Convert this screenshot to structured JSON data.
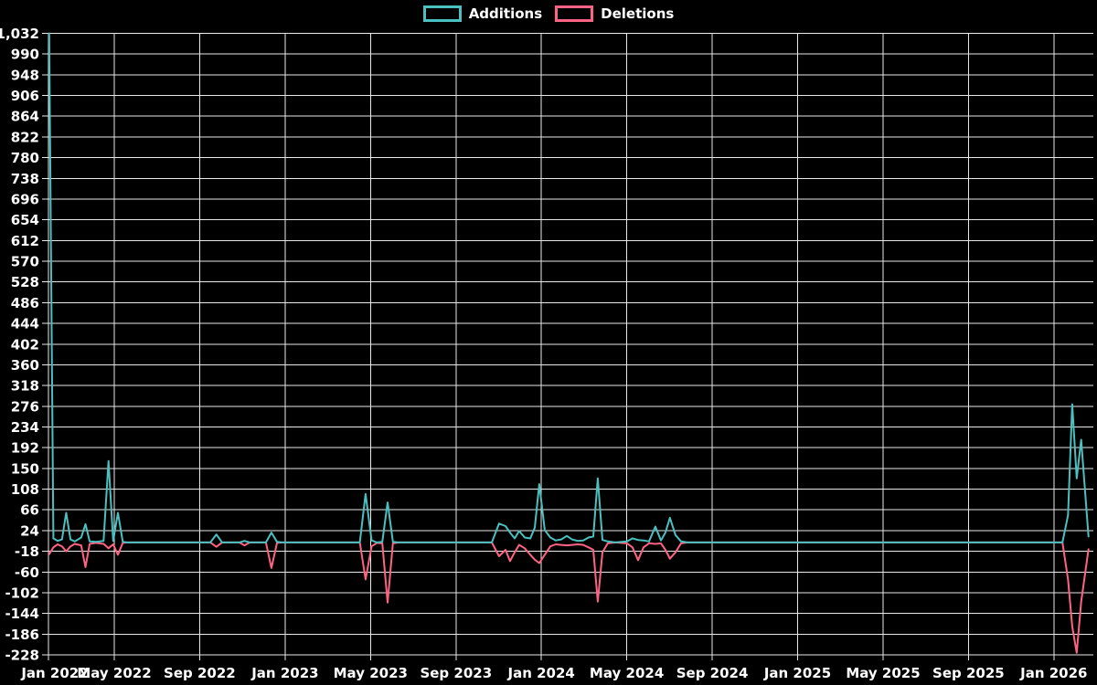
{
  "chart_data": {
    "type": "line",
    "title": "",
    "legend": [
      {
        "label": "Additions",
        "color": "#4BC0C0"
      },
      {
        "label": "Deletions",
        "color": "#FF6384"
      }
    ],
    "background": "#000000",
    "gridline_color": "#e8e8e8",
    "text_color": "#ffffff",
    "grid": true,
    "legend_position": "top-center",
    "ylim": [
      -228,
      1032
    ],
    "y_tick_step": 42,
    "y_tick_labels": [
      "1,032",
      "990",
      "948",
      "906",
      "864",
      "822",
      "780",
      "738",
      "696",
      "654",
      "612",
      "570",
      "528",
      "486",
      "444",
      "402",
      "360",
      "318",
      "276",
      "234",
      "192",
      "150",
      "108",
      "66",
      "24",
      "-18",
      "-60",
      "-102",
      "-144",
      "-186",
      "-228"
    ],
    "y_tick_values": [
      1032,
      990,
      948,
      906,
      864,
      822,
      780,
      738,
      696,
      654,
      612,
      570,
      528,
      486,
      444,
      402,
      360,
      318,
      276,
      234,
      192,
      150,
      108,
      66,
      24,
      -18,
      -60,
      -102,
      -144,
      -186,
      -228
    ],
    "x_ticks": [
      {
        "t": 0,
        "label": "Jan 2022"
      },
      {
        "t": 4,
        "label": "May 2022"
      },
      {
        "t": 8,
        "label": "Sep 2022"
      },
      {
        "t": 12,
        "label": "Jan 2023"
      },
      {
        "t": 16,
        "label": "May 2023"
      },
      {
        "t": 20,
        "label": "Sep 2023"
      },
      {
        "t": 24,
        "label": "Jan 2024"
      },
      {
        "t": 28,
        "label": "May 2024"
      },
      {
        "t": 32,
        "label": "Sep 2024"
      },
      {
        "t": 36,
        "label": "Jan 2025"
      },
      {
        "t": 40,
        "label": "May 2025"
      },
      {
        "t": 44,
        "label": "Sep 2025"
      },
      {
        "t": 48,
        "label": "Jan 2026"
      }
    ],
    "series_names": [
      "Additions",
      "Deletions"
    ],
    "rows_format": [
      "date",
      "months_since_jan2022",
      "additions",
      "deletions"
    ],
    "rows": [
      [
        "2022-01-29",
        0.95,
        1032,
        -24
      ],
      [
        "2022-02-05",
        1.15,
        8,
        -10
      ],
      [
        "2022-02-11",
        1.35,
        3,
        -4
      ],
      [
        "2022-02-17",
        1.55,
        6,
        -8
      ],
      [
        "2022-02-23",
        1.75,
        60,
        -18
      ],
      [
        "2022-03-01",
        1.95,
        6,
        -8
      ],
      [
        "2022-03-07",
        2.15,
        2,
        -3
      ],
      [
        "2022-03-16",
        2.45,
        10,
        -6
      ],
      [
        "2022-03-22",
        2.65,
        37,
        -50
      ],
      [
        "2022-03-28",
        2.85,
        2,
        -3
      ],
      [
        "2022-04-06",
        3.15,
        1,
        -1
      ],
      [
        "2022-04-16",
        3.5,
        3,
        -3
      ],
      [
        "2022-04-23",
        3.73,
        165,
        -12
      ],
      [
        "2022-04-30",
        3.95,
        3,
        -4
      ],
      [
        "2022-05-06",
        4.17,
        60,
        -25
      ],
      [
        "2022-05-13",
        4.4,
        1,
        -1
      ],
      [
        "2022-05-19",
        4.6,
        0,
        0
      ],
      [
        "2022-07-01",
        6.0,
        0,
        0
      ],
      [
        "2022-09-16",
        8.5,
        0,
        0
      ],
      [
        "2022-09-24",
        8.78,
        16,
        -9
      ],
      [
        "2022-10-02",
        9.05,
        0,
        0
      ],
      [
        "2022-10-26",
        9.85,
        0,
        0
      ],
      [
        "2022-11-03",
        10.1,
        3,
        -6
      ],
      [
        "2022-11-10",
        10.35,
        0,
        0
      ],
      [
        "2022-12-03",
        11.1,
        0,
        0
      ],
      [
        "2022-12-11",
        11.36,
        20,
        -52
      ],
      [
        "2022-12-19",
        11.62,
        1,
        -1
      ],
      [
        "2022-12-26",
        11.85,
        0,
        0
      ],
      [
        "2023-02-15",
        13.5,
        0,
        0
      ],
      [
        "2023-04-16",
        15.5,
        0,
        0
      ],
      [
        "2023-04-24",
        15.77,
        98,
        -75
      ],
      [
        "2023-05-02",
        16.05,
        4,
        -8
      ],
      [
        "2023-05-10",
        16.3,
        0,
        -1
      ],
      [
        "2023-05-17",
        16.55,
        1,
        -2
      ],
      [
        "2023-05-25",
        16.8,
        81,
        -122
      ],
      [
        "2023-06-02",
        17.05,
        1,
        -2
      ],
      [
        "2023-06-09",
        17.3,
        0,
        0
      ],
      [
        "2023-08-15",
        19.5,
        0,
        0
      ],
      [
        "2023-10-22",
        21.68,
        0,
        0
      ],
      [
        "2023-11-01",
        22.02,
        38,
        -28
      ],
      [
        "2023-11-10",
        22.32,
        33,
        -15
      ],
      [
        "2023-11-17",
        22.53,
        20,
        -38
      ],
      [
        "2023-11-23",
        22.75,
        8,
        -20
      ],
      [
        "2023-11-30",
        22.96,
        23,
        -5
      ],
      [
        "2023-12-07",
        23.22,
        10,
        -12
      ],
      [
        "2023-12-15",
        23.48,
        8,
        -25
      ],
      [
        "2023-12-22",
        23.69,
        30,
        -35
      ],
      [
        "2023-12-28",
        23.9,
        118,
        -42
      ],
      [
        "2024-01-05",
        24.16,
        25,
        -25
      ],
      [
        "2024-01-13",
        24.42,
        10,
        -8
      ],
      [
        "2024-01-21",
        24.67,
        4,
        -4
      ],
      [
        "2024-01-28",
        24.93,
        6,
        -5
      ],
      [
        "2024-02-06",
        25.19,
        13,
        -6
      ],
      [
        "2024-02-13",
        25.44,
        6,
        -5
      ],
      [
        "2024-02-21",
        25.7,
        3,
        -4
      ],
      [
        "2024-02-29",
        25.96,
        4,
        -5
      ],
      [
        "2024-03-07",
        26.21,
        10,
        -10
      ],
      [
        "2024-03-13",
        26.43,
        12,
        -15
      ],
      [
        "2024-03-20",
        26.64,
        130,
        -120
      ],
      [
        "2024-03-26",
        26.86,
        5,
        -20
      ],
      [
        "2024-04-03",
        27.11,
        2,
        -2
      ],
      [
        "2024-04-14",
        27.46,
        0,
        0
      ],
      [
        "2024-05-01",
        28.01,
        2,
        -2
      ],
      [
        "2024-05-08",
        28.27,
        8,
        -10
      ],
      [
        "2024-05-16",
        28.53,
        5,
        -36
      ],
      [
        "2024-05-24",
        28.78,
        4,
        -10
      ],
      [
        "2024-06-01",
        29.04,
        2,
        -2
      ],
      [
        "2024-06-10",
        29.34,
        32,
        -3
      ],
      [
        "2024-06-18",
        29.6,
        4,
        -2
      ],
      [
        "2024-06-24",
        29.81,
        20,
        -15
      ],
      [
        "2024-07-01",
        30.02,
        50,
        -33
      ],
      [
        "2024-07-09",
        30.28,
        15,
        -20
      ],
      [
        "2024-07-16",
        30.54,
        2,
        -2
      ],
      [
        "2024-07-25",
        30.84,
        0,
        0
      ],
      [
        "2024-10-01",
        33,
        0,
        0
      ],
      [
        "2025-03-01",
        38,
        0,
        0
      ],
      [
        "2025-08-01",
        43,
        0,
        0
      ],
      [
        "2025-12-15",
        47.5,
        0,
        0
      ],
      [
        "2026-01-13",
        48.4,
        0,
        0
      ],
      [
        "2026-01-20",
        48.66,
        55,
        -75
      ],
      [
        "2026-01-27",
        48.86,
        280,
        -170
      ],
      [
        "2026-02-02",
        49.07,
        130,
        -224
      ],
      [
        "2026-02-09",
        49.28,
        208,
        -120
      ],
      [
        "2026-02-16",
        49.62,
        12,
        -14
      ]
    ]
  }
}
